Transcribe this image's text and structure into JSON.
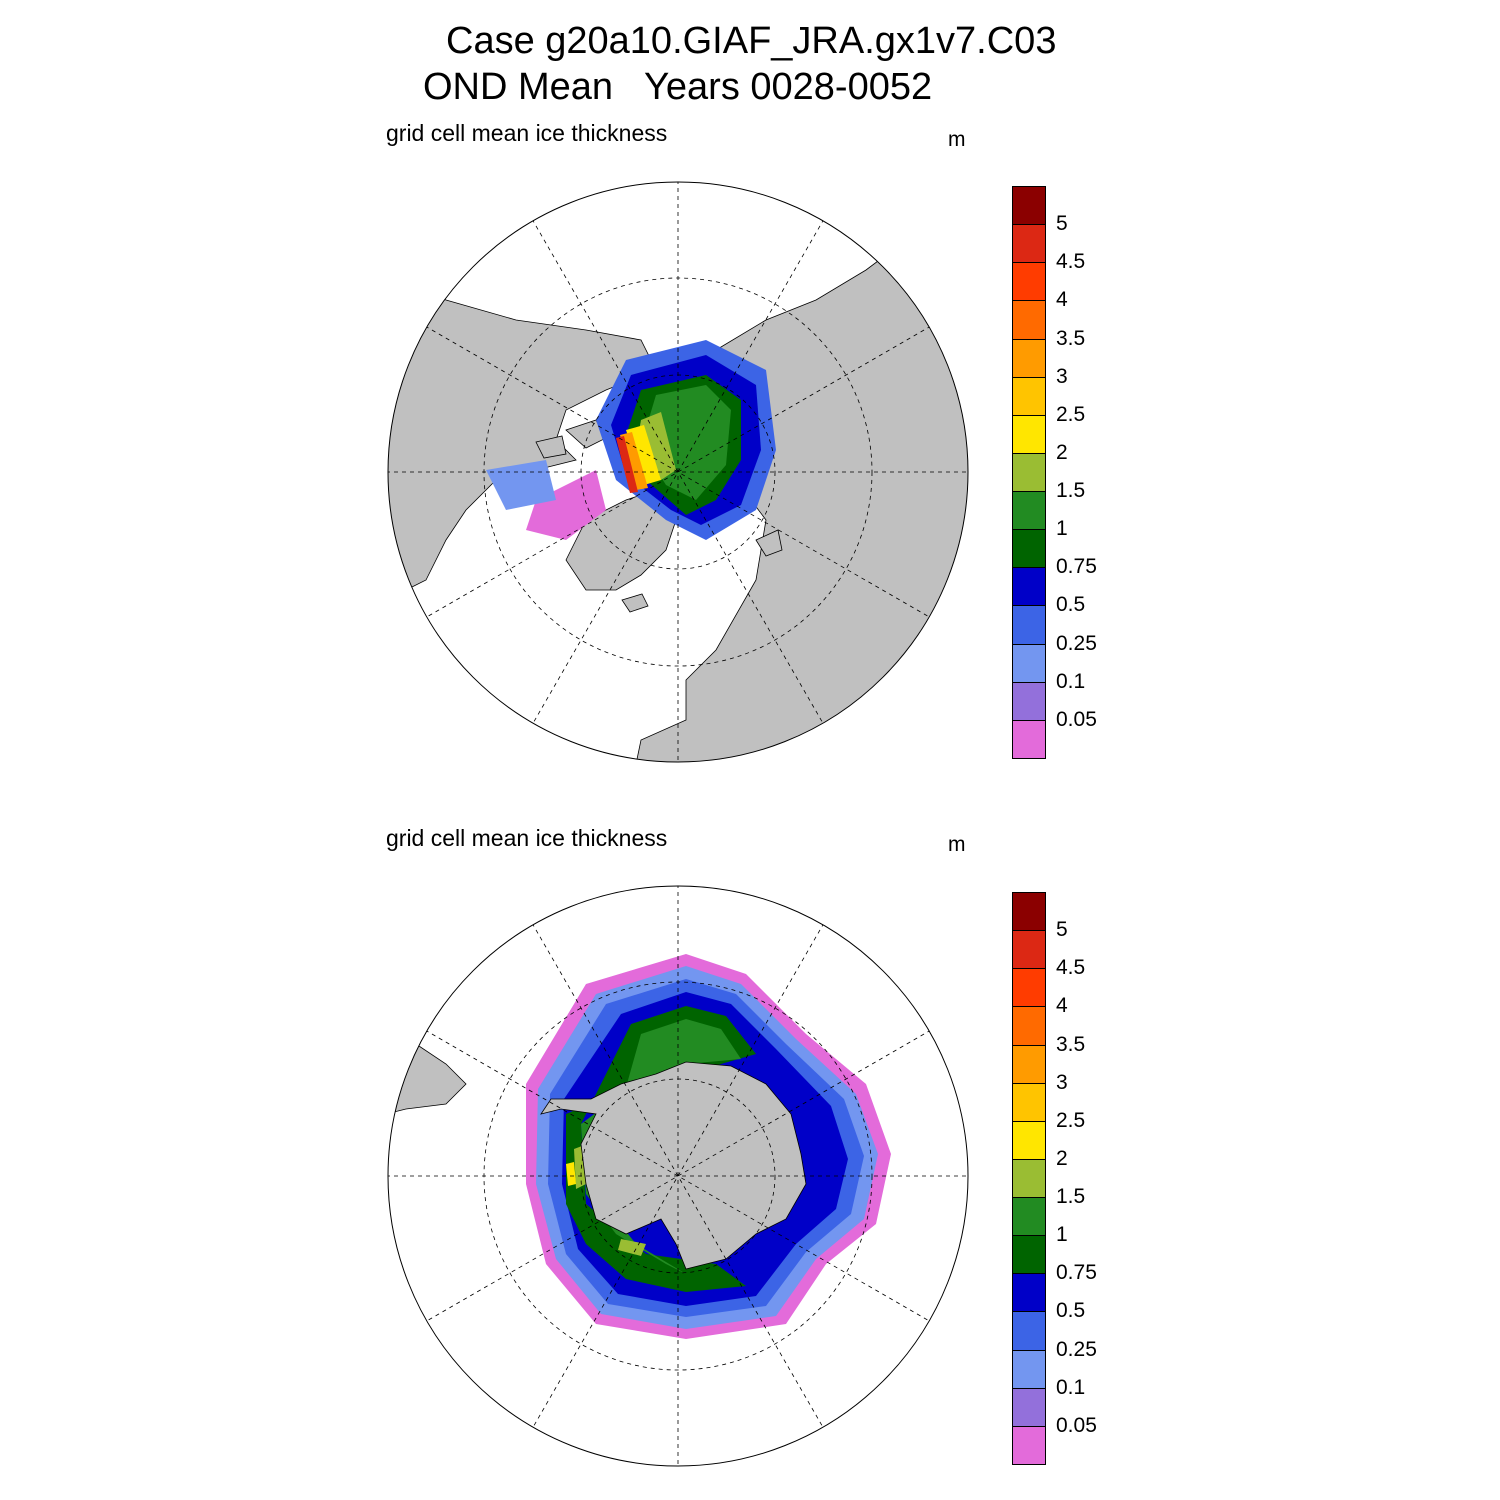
{
  "figure": {
    "title_line1": "Case g20a10.GIAF_JRA.gx1v7.C03",
    "title_line2": "OND Mean   Years 0028-0052"
  },
  "panels": [
    {
      "id": "arctic",
      "hemisphere": "north",
      "label": "grid cell mean ice thickness",
      "units": "m"
    },
    {
      "id": "antarctic",
      "hemisphere": "south",
      "label": "grid cell mean ice thickness",
      "units": "m"
    }
  ],
  "colorbar": {
    "tick_labels": [
      "0.05",
      "0.1",
      "0.25",
      "0.5",
      "0.75",
      "1",
      "1.5",
      "2",
      "2.5",
      "3",
      "3.5",
      "4",
      "4.5",
      "5"
    ],
    "colors": [
      "#e36bda",
      "#9370db",
      "#7396f0",
      "#3c64e6",
      "#0000c8",
      "#006400",
      "#228b22",
      "#9abd33",
      "#ffe600",
      "#ffc400",
      "#ff9b00",
      "#ff6a00",
      "#ff3c00",
      "#dc2814",
      "#8b0000"
    ]
  },
  "map_colors": {
    "land": "#c0c0c0",
    "ocean": "#ffffff",
    "coast": "#000000"
  },
  "chart_data": [
    {
      "type": "heatmap",
      "projection": "north polar stereographic",
      "title": "grid cell mean ice thickness",
      "units": "m",
      "levels": [
        0.05,
        0.1,
        0.25,
        0.5,
        0.75,
        1,
        1.5,
        2,
        2.5,
        3,
        3.5,
        4,
        4.5,
        5
      ],
      "description_values": {
        "central_arctic_thickness_range_m": [
          1,
          1.5
        ],
        "max_thickness_north_of_greenland_m": 5,
        "marginal_seas_m": [
          0.05,
          0.75
        ]
      }
    },
    {
      "type": "heatmap",
      "projection": "south polar stereographic",
      "title": "grid cell mean ice thickness",
      "units": "m",
      "levels": [
        0.05,
        0.1,
        0.25,
        0.5,
        0.75,
        1,
        1.5,
        2,
        2.5,
        3,
        3.5,
        4,
        4.5,
        5
      ],
      "description_values": {
        "pack_ice_thickness_range_m": [
          0.75,
          1.5
        ],
        "max_thickness_weddell_m": 2.5,
        "ice_edge_m": [
          0.05,
          0.25
        ]
      }
    }
  ]
}
